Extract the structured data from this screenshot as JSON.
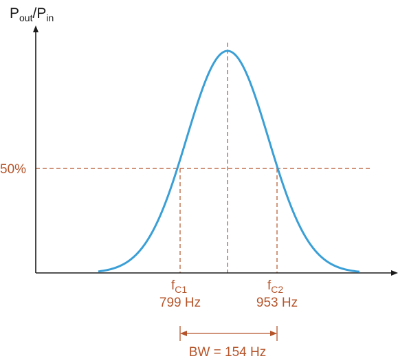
{
  "colors": {
    "curve": "#3a9fd6",
    "accent": "#b5542a",
    "axis": "#1a1a1a",
    "background": "#ffffff"
  },
  "y_axis": {
    "label_main": "P",
    "label_sub1": "out",
    "label_slash": "/P",
    "label_sub2": "in"
  },
  "half_power": {
    "label": "50%"
  },
  "cutoffs": [
    {
      "symbol": "f",
      "subscript": "C1",
      "value_label": "799 Hz"
    },
    {
      "symbol": "f",
      "subscript": "C2",
      "value_label": "953 Hz"
    }
  ],
  "bandwidth": {
    "label": "BW = 154 Hz"
  }
}
